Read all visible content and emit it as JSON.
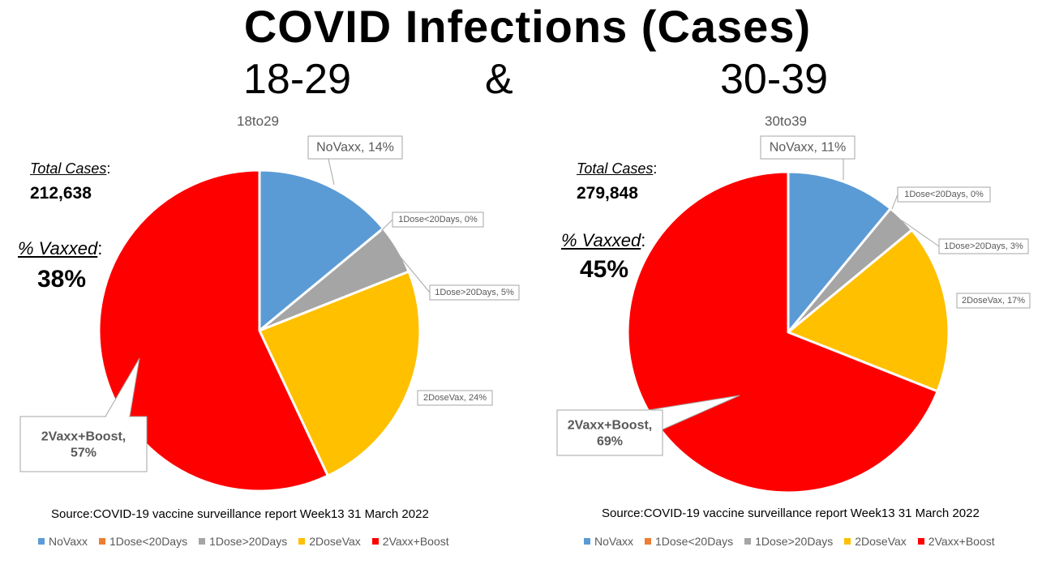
{
  "main_title": "COVID Infections (Cases)",
  "age_left": "18-29",
  "ampersand": "&",
  "age_right": "30-39",
  "legend": [
    {
      "label": "NoVaxx",
      "color": "#5B9BD5"
    },
    {
      "label": "1Dose<20Days",
      "color": "#ED7D31"
    },
    {
      "label": "1Dose>20Days",
      "color": "#A5A5A5"
    },
    {
      "label": "2DoseVax",
      "color": "#FFC000"
    },
    {
      "label": "2Vaxx+Boost",
      "color": "#FF0000"
    }
  ],
  "left": {
    "total_cases_label": "Total Cases",
    "total_cases_colon": ":",
    "total_cases": "212,638",
    "pct_vaxxed_label": "% Vaxxed",
    "pct_vaxxed_colon": ":",
    "pct_vaxxed": "38%",
    "source": "Source:COVID-19 vaccine surveillance report Week13  31 March 2022"
  },
  "right": {
    "total_cases_label": "Total Cases",
    "total_cases_colon": ":",
    "total_cases": "279,848",
    "pct_vaxxed_label": "% Vaxxed",
    "pct_vaxxed_colon": ":",
    "pct_vaxxed": "45%",
    "source": "Source:COVID-19 vaccine surveillance report Week13  31 March 2022"
  },
  "chart_data": [
    {
      "type": "pie",
      "title": "18to29",
      "categories": [
        "NoVaxx",
        "1Dose<20Days",
        "1Dose>20Days",
        "2DoseVax",
        "2Vaxx+Boost"
      ],
      "values": [
        14,
        0,
        5,
        24,
        57
      ],
      "data_labels": [
        "NoVaxx, 14%",
        "1Dose<20Days, 0%",
        "1Dose>20Days, 5%",
        "2DoseVax, 24%",
        "2Vaxx+Boost, 57%"
      ],
      "legend_position": "bottom"
    },
    {
      "type": "pie",
      "title": "30to39",
      "categories": [
        "NoVaxx",
        "1Dose<20Days",
        "1Dose>20Days",
        "2DoseVax",
        "2Vaxx+Boost"
      ],
      "values": [
        11,
        0,
        3,
        17,
        69
      ],
      "data_labels": [
        "NoVaxx, 11%",
        "1Dose<20Days, 0%",
        "1Dose>20Days, 3%",
        "2DoseVax, 17%",
        "2Vaxx+Boost, 69%"
      ],
      "legend_position": "bottom"
    }
  ]
}
